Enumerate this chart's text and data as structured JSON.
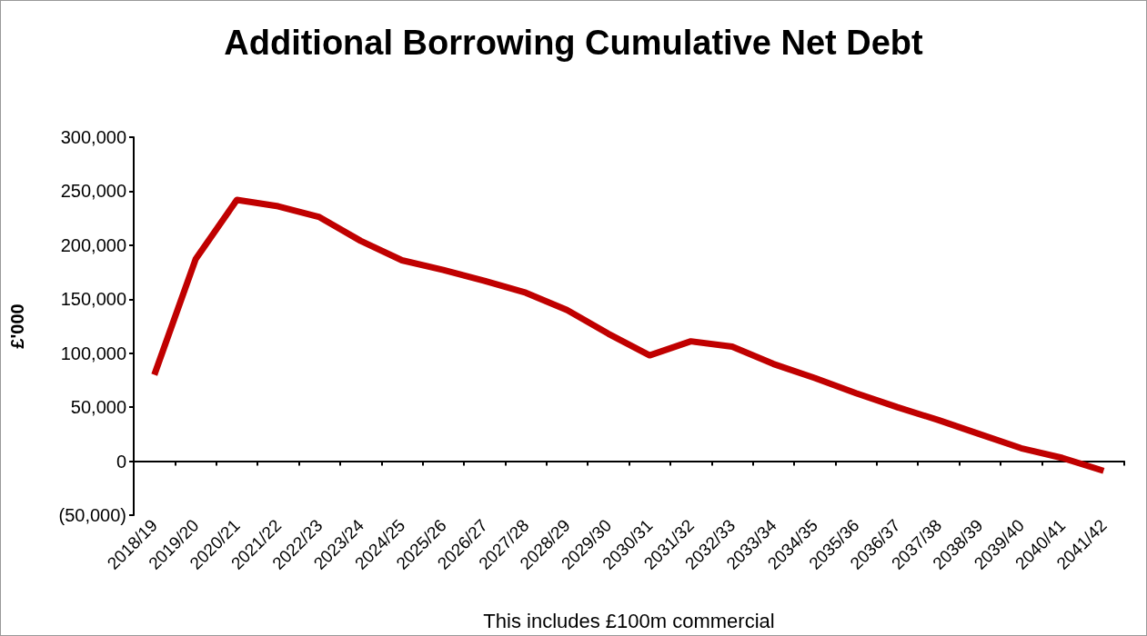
{
  "chart_data": {
    "type": "line",
    "title": "Additional Borrowing Cumulative Net Debt",
    "xlabel": "This includes £100m commercial",
    "ylabel": "£'000",
    "categories": [
      "2018/19",
      "2019/20",
      "2020/21",
      "2021/22",
      "2022/23",
      "2023/24",
      "2024/25",
      "2025/26",
      "2026/27",
      "2027/28",
      "2028/29",
      "2029/30",
      "2030/31",
      "2031/32",
      "2032/33",
      "2033/34",
      "2034/35",
      "2035/36",
      "2036/37",
      "2037/38",
      "2038/39",
      "2039/40",
      "2040/41",
      "2041/42"
    ],
    "series": [
      {
        "color": "#c00000",
        "values": [
          80000,
          187000,
          242000,
          236000,
          226000,
          204000,
          186000,
          177000,
          167000,
          156000,
          140000,
          118000,
          98000,
          111000,
          106000,
          90000,
          77000,
          63000,
          50000,
          38000,
          25000,
          12000,
          3000,
          -9000
        ]
      }
    ],
    "ylim": [
      -50000,
      300000
    ],
    "yticks": [
      {
        "value": -50000,
        "label": "(50,000)"
      },
      {
        "value": 0,
        "label": "0"
      },
      {
        "value": 50000,
        "label": "50,000"
      },
      {
        "value": 100000,
        "label": "100,000"
      },
      {
        "value": 150000,
        "label": "150,000"
      },
      {
        "value": 200000,
        "label": "200,000"
      },
      {
        "value": 250000,
        "label": "250,000"
      },
      {
        "value": 300000,
        "label": "300,000"
      }
    ],
    "marker": "none",
    "line_style": "solid"
  }
}
